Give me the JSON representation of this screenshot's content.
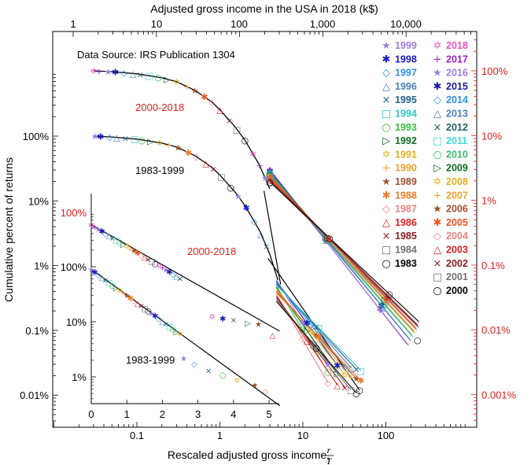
{
  "chart_data": {
    "type": "scatter",
    "title": "",
    "xlabel": "Rescaled adjusted gross income,",
    "xlabel_math": "r/T",
    "top_axis_label": "Adjusted gross income in the USA in 2018 (k$)",
    "ylabel": "Cumulative percent of returns",
    "log_x": true,
    "log_y": true,
    "xlim": [
      0.025,
      1000
    ],
    "bottom_ticks": [
      "0.1",
      "1",
      "10",
      "100"
    ],
    "top_ticks": [
      "1",
      "10",
      "100",
      "1,000",
      "10,000"
    ],
    "left_ticks": [
      "100%",
      "10%",
      "1%",
      "0.1%",
      "0.01%"
    ],
    "right_ticks": [
      "100%",
      "10%",
      "1%",
      "0.1%",
      "0.01%",
      "0.001%"
    ],
    "annotation_source": "Data Source: IRS Publication 1304",
    "group_labels": [
      "2000-2018",
      "1983-1999"
    ],
    "inset": {
      "xlabel_ticks": [
        "0",
        "1",
        "2",
        "3",
        "4",
        "5"
      ],
      "left_ticks_upper": [
        "100%"
      ],
      "left_ticks_lower": [
        "100%",
        "10%",
        "1%"
      ],
      "group_labels": [
        "2000-2018",
        "1983-1999"
      ]
    },
    "legend_left": [
      {
        "year": "1999",
        "color": "#9a7fe0",
        "marker": "★"
      },
      {
        "year": "1998",
        "color": "#1a1ac8",
        "marker": "✱"
      },
      {
        "year": "1997",
        "color": "#2a8ff0",
        "marker": "◇"
      },
      {
        "year": "1996",
        "color": "#4a7fb5",
        "marker": "△"
      },
      {
        "year": "1995",
        "color": "#1f5f8a",
        "marker": "×"
      },
      {
        "year": "1994",
        "color": "#2ec7c7",
        "marker": "□"
      },
      {
        "year": "1993",
        "color": "#3cb83c",
        "marker": "○"
      },
      {
        "year": "1992",
        "color": "#0f6e1f",
        "marker": "▷"
      },
      {
        "year": "1991",
        "color": "#e0b020",
        "marker": "✡"
      },
      {
        "year": "1990",
        "color": "#f0a030",
        "marker": "+"
      },
      {
        "year": "1989",
        "color": "#a0522d",
        "marker": "★"
      },
      {
        "year": "1988",
        "color": "#f07828",
        "marker": "✱"
      },
      {
        "year": "1987",
        "color": "#f08080",
        "marker": "◇"
      },
      {
        "year": "1986",
        "color": "#e02020",
        "marker": "△"
      },
      {
        "year": "1985",
        "color": "#8b1a1a",
        "marker": "×"
      },
      {
        "year": "1984",
        "color": "#707070",
        "marker": "□"
      },
      {
        "year": "1983",
        "color": "#000000",
        "marker": "○"
      }
    ],
    "legend_right": [
      {
        "year": "2018",
        "color": "#f050c0",
        "marker": "✡"
      },
      {
        "year": "2017",
        "color": "#9a20c8",
        "marker": "+"
      },
      {
        "year": "2016",
        "color": "#9a7fe0",
        "marker": "★"
      },
      {
        "year": "2015",
        "color": "#1a1aa0",
        "marker": "✱"
      },
      {
        "year": "2014",
        "color": "#2a8ff0",
        "marker": "◇"
      },
      {
        "year": "2013",
        "color": "#4a7fb5",
        "marker": "△"
      },
      {
        "year": "2012",
        "color": "#1f5f6a",
        "marker": "×"
      },
      {
        "year": "2011",
        "color": "#40d8d8",
        "marker": "□"
      },
      {
        "year": "2010",
        "color": "#3cb870",
        "marker": "○"
      },
      {
        "year": "2009",
        "color": "#0f6e1f",
        "marker": "▷"
      },
      {
        "year": "2008",
        "color": "#e0b020",
        "marker": "✡"
      },
      {
        "year": "2007",
        "color": "#f0a030",
        "marker": "+"
      },
      {
        "year": "2006",
        "color": "#a0522d",
        "marker": "★"
      },
      {
        "year": "2005",
        "color": "#f05020",
        "marker": "✱"
      },
      {
        "year": "2004",
        "color": "#f08080",
        "marker": "◇"
      },
      {
        "year": "2003",
        "color": "#e02020",
        "marker": "△"
      },
      {
        "year": "2002",
        "color": "#8b1a1a",
        "marker": "×"
      },
      {
        "year": "2001",
        "color": "#707070",
        "marker": "□"
      },
      {
        "year": "2000",
        "color": "#000000",
        "marker": "○"
      }
    ],
    "series_upper_curve": {
      "x": [
        0.03,
        0.05,
        0.1,
        0.2,
        0.3,
        0.5,
        0.8,
        1.0,
        1.5,
        2.0,
        3.0,
        4.0
      ],
      "y_fraction": [
        1.0,
        0.97,
        0.9,
        0.78,
        0.68,
        0.5,
        0.33,
        0.25,
        0.14,
        0.085,
        0.035,
        0.015
      ]
    },
    "series_lower_curve": {
      "x": [
        0.03,
        0.05,
        0.1,
        0.2,
        0.3,
        0.5,
        0.8,
        1.0,
        1.5,
        2.0,
        3.0,
        4.0,
        5.0
      ],
      "y_fraction": [
        1.0,
        0.97,
        0.9,
        0.78,
        0.68,
        0.5,
        0.33,
        0.25,
        0.14,
        0.085,
        0.035,
        0.015,
        0.006
      ]
    },
    "tail_upper": {
      "x": [
        4,
        200
      ],
      "y_fraction_pct": [
        0.3,
        0.0055
      ]
    },
    "tail_lower": {
      "x": [
        4.5,
        50
      ],
      "y_fraction_pct": [
        0.03,
        0.00025
      ]
    }
  }
}
